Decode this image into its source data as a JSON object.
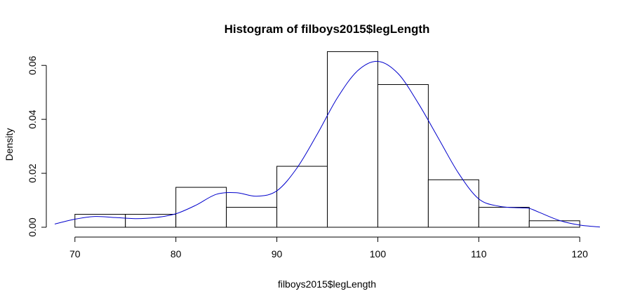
{
  "chart_data": {
    "type": "histogram",
    "title": "Histogram of filboys2015$legLength",
    "xlabel": "filboys2015$legLength",
    "ylabel": "Density",
    "xlim": [
      68,
      122
    ],
    "ylim": [
      0,
      0.065
    ],
    "x_ticks": [
      "70",
      "80",
      "90",
      "100",
      "110",
      "120"
    ],
    "x_tick_values": [
      70,
      80,
      90,
      100,
      110,
      120
    ],
    "y_ticks": [
      "0.00",
      "0.02",
      "0.04",
      "0.06"
    ],
    "y_tick_values": [
      0,
      0.02,
      0.04,
      0.06
    ],
    "bins": [
      {
        "from": 70,
        "to": 75,
        "density": 0.0048
      },
      {
        "from": 75,
        "to": 80,
        "density": 0.0048
      },
      {
        "from": 80,
        "to": 85,
        "density": 0.0148
      },
      {
        "from": 85,
        "to": 90,
        "density": 0.0074
      },
      {
        "from": 90,
        "to": 95,
        "density": 0.0226
      },
      {
        "from": 95,
        "to": 100,
        "density": 0.0651
      },
      {
        "from": 100,
        "to": 105,
        "density": 0.0529
      },
      {
        "from": 105,
        "to": 110,
        "density": 0.0176
      },
      {
        "from": 110,
        "to": 115,
        "density": 0.0074
      },
      {
        "from": 115,
        "to": 120,
        "density": 0.0024
      }
    ],
    "density_curve": {
      "color": "#0000cc",
      "x": [
        68,
        70,
        72,
        74,
        76,
        78,
        80,
        82,
        84,
        86,
        88,
        90,
        92,
        94,
        96,
        98,
        100,
        102,
        104,
        106,
        108,
        110,
        112,
        114,
        115,
        116,
        118,
        120,
        122
      ],
      "y": [
        0.0012,
        0.003,
        0.004,
        0.0036,
        0.0032,
        0.0036,
        0.005,
        0.0082,
        0.0122,
        0.0128,
        0.0115,
        0.0135,
        0.022,
        0.0345,
        0.048,
        0.058,
        0.0615,
        0.057,
        0.046,
        0.033,
        0.02,
        0.0105,
        0.0078,
        0.0072,
        0.007,
        0.0055,
        0.0025,
        0.0008,
        0.0001
      ]
    }
  }
}
